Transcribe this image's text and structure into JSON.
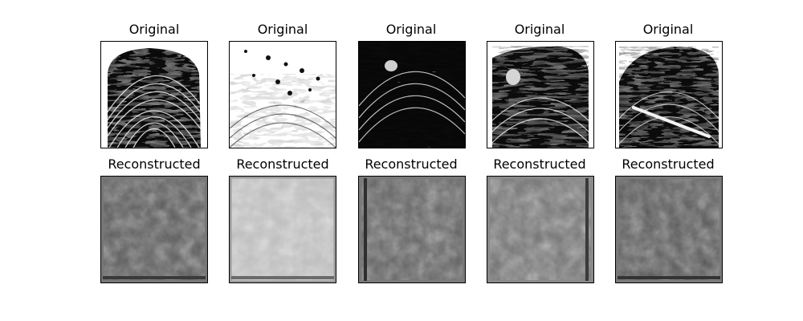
{
  "figure": {
    "rows": [
      {
        "row_name": "original",
        "titles": [
          "Original",
          "Original",
          "Original",
          "Original",
          "Original"
        ]
      },
      {
        "row_name": "reconstructed",
        "titles": [
          "Reconstructed",
          "Reconstructed",
          "Reconstructed",
          "Reconstructed",
          "Reconstructed"
        ]
      }
    ],
    "images": {
      "original": [
        {
          "description_icon": "fingerprint-image"
        },
        {
          "description_icon": "fingerprint-image"
        },
        {
          "description_icon": "fingerprint-image"
        },
        {
          "description_icon": "fingerprint-image"
        },
        {
          "description_icon": "fingerprint-image"
        }
      ],
      "reconstructed": [
        {
          "description_icon": "blurred-reconstruction-image"
        },
        {
          "description_icon": "blurred-reconstruction-image"
        },
        {
          "description_icon": "blurred-reconstruction-image"
        },
        {
          "description_icon": "blurred-reconstruction-image"
        },
        {
          "description_icon": "blurred-reconstruction-image"
        }
      ]
    },
    "colors": {
      "border": "#000000",
      "ink": "#000000",
      "paper": "#ffffff"
    }
  }
}
